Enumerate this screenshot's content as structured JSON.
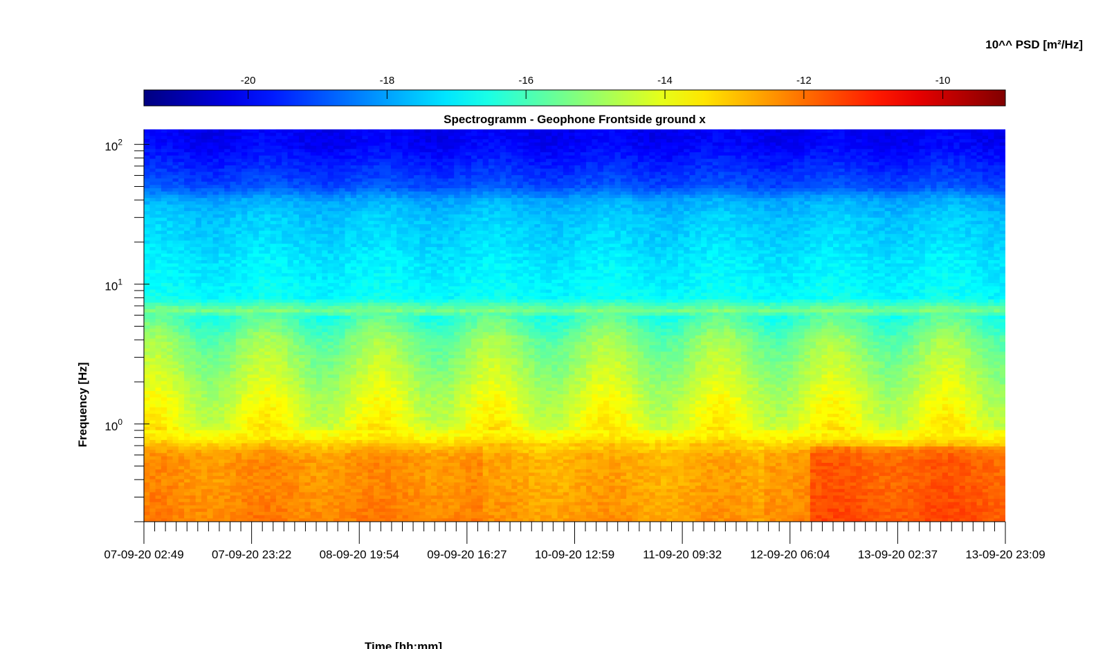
{
  "chart_data": {
    "type": "heatmap",
    "title": "Spectrogramm - Geophone Frontside ground x",
    "xlabel": "Time [hh:mm]",
    "ylabel": "Frequency [Hz]",
    "x_tick_labels": [
      "07-09-20 02:49",
      "07-09-20 23:22",
      "08-09-20 19:54",
      "09-09-20 16:27",
      "10-09-20 12:59",
      "11-09-20 09:32",
      "12-09-20 06:04",
      "13-09-20 02:37",
      "13-09-20 23:09"
    ],
    "y_scale": "log",
    "y_tick_labels": [
      {
        "base": "10",
        "exp": "2",
        "value": 100
      },
      {
        "base": "10",
        "exp": "1",
        "value": 10
      },
      {
        "base": "10",
        "exp": "0",
        "value": 1
      }
    ],
    "ylim": [
      0.2,
      128
    ],
    "colorbar": {
      "label": "10^^ PSD [m²/Hz]",
      "ticks": [
        -20,
        -18,
        -16,
        -14,
        -12,
        -10
      ],
      "tick_labels": [
        "-20",
        "-18",
        "-16",
        "-14",
        "-12",
        "-10"
      ],
      "range": [
        -21.5,
        -9.1
      ],
      "colormap": "jet",
      "placement": "top"
    },
    "psd_profile_log10": {
      "frequency_hz": [
        128,
        100,
        70,
        50,
        40,
        30,
        20,
        15,
        12,
        10,
        8,
        6.3,
        6,
        5,
        4,
        3,
        2,
        1.5,
        1,
        0.8,
        0.7,
        0.6,
        0.5,
        0.4,
        0.3,
        0.2
      ],
      "log10_psd": [
        -20.1,
        -20.0,
        -19.5,
        -19.0,
        -17.9,
        -17.5,
        -17.3,
        -17.1,
        -17.0,
        -16.9,
        -16.8,
        -15.2,
        -16.2,
        -15.8,
        -15.3,
        -15.0,
        -14.6,
        -14.3,
        -14.0,
        -13.6,
        -13.0,
        -12.5,
        -12.4,
        -12.4,
        -12.3,
        -12.2
      ]
    },
    "grid": false
  }
}
